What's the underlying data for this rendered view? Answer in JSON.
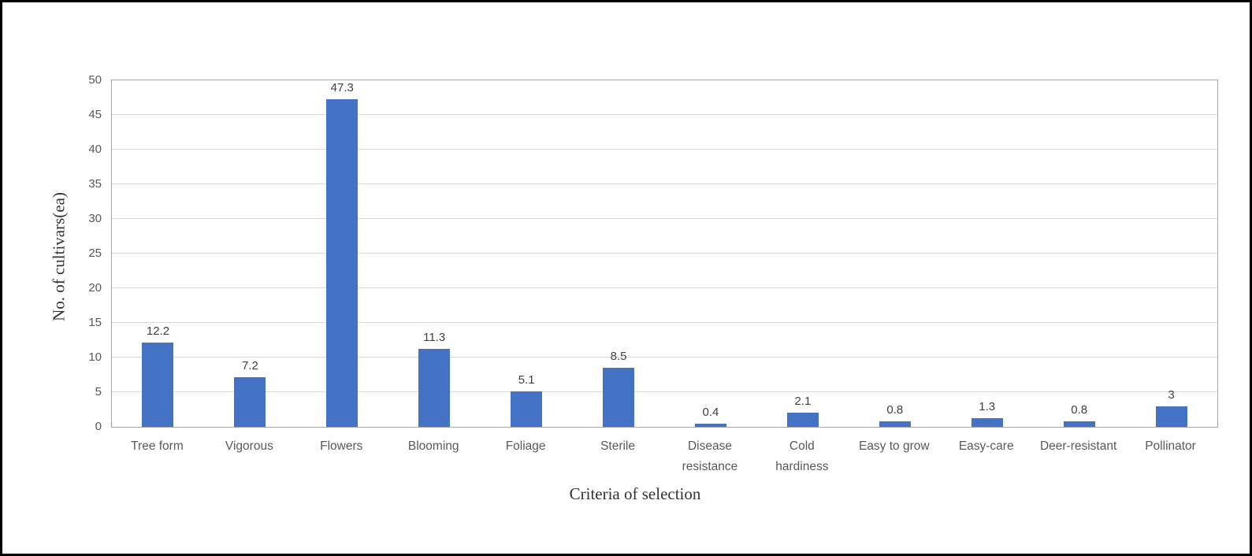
{
  "chart_data": {
    "type": "bar",
    "title": "",
    "xlabel": "Criteria of selection",
    "ylabel": "No. of cultivars(ea)",
    "categories": [
      "Tree form",
      "Vigorous",
      "Flowers",
      "Blooming",
      "Foliage",
      "Sterile",
      "Disease\nresistance",
      "Cold\nhardiness",
      "Easy to grow",
      "Easy-care",
      "Deer-resistant",
      "Pollinator"
    ],
    "values": [
      12.2,
      7.2,
      47.3,
      11.3,
      5.1,
      8.5,
      0.4,
      2.1,
      0.8,
      1.3,
      0.8,
      3
    ],
    "data_labels": [
      "12.2",
      "7.2",
      "47.3",
      "11.3",
      "5.1",
      "8.5",
      "0.4",
      "2.1",
      "0.8",
      "1.3",
      "0.8",
      "3"
    ],
    "ylim": [
      0,
      50
    ],
    "yticks": [
      0,
      5,
      10,
      15,
      20,
      25,
      30,
      35,
      40,
      45,
      50
    ],
    "grid": "horizontal",
    "legend": "none",
    "bar_color": "#4472C4"
  },
  "colors": {
    "bar": "#4472C4",
    "gridline": "#D9D9D9",
    "plot_border": "#A6A6A6",
    "tick_text": "#595959",
    "value_text": "#404040",
    "axis_title_text": "#333333",
    "frame_border": "#000000",
    "background": "#FFFFFF"
  }
}
